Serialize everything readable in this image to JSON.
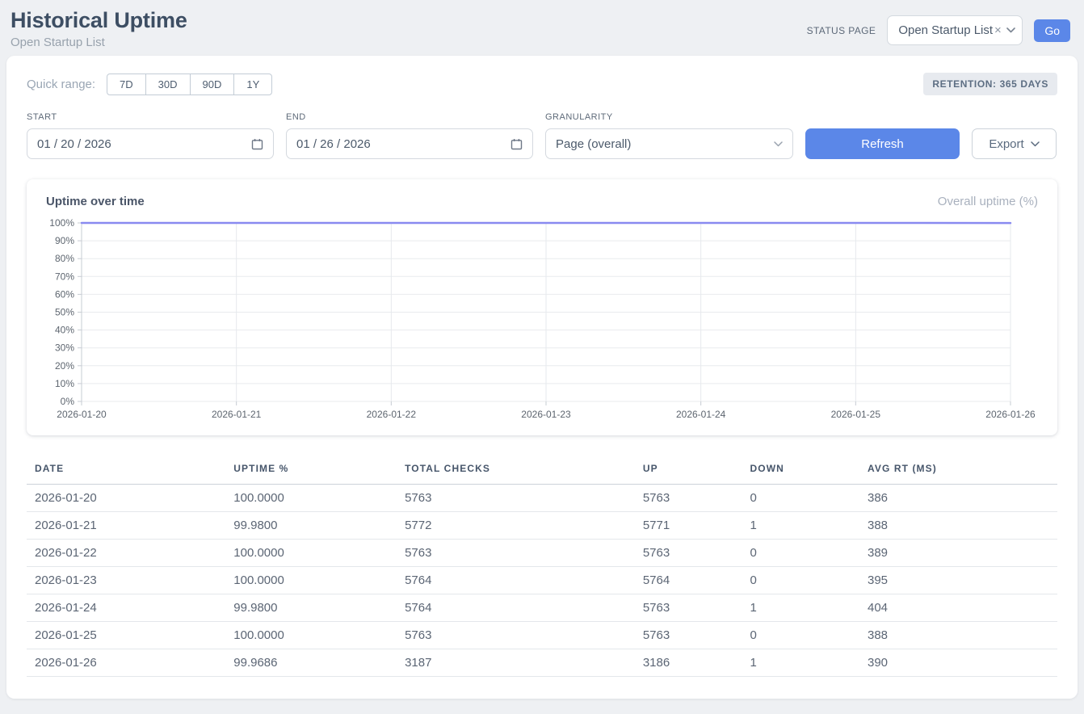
{
  "header": {
    "title": "Historical Uptime",
    "subtitle": "Open Startup List",
    "status_page_label": "STATUS PAGE",
    "status_page_value": "Open Startup List",
    "status_page_clear": "×",
    "go_label": "Go"
  },
  "filters": {
    "quick_range_label": "Quick range:",
    "quick_ranges": [
      "7D",
      "30D",
      "90D",
      "1Y"
    ],
    "retention_badge": "RETENTION: 365 DAYS",
    "start_label": "START",
    "start_value": "01 / 20 / 2026",
    "end_label": "END",
    "end_value": "01 / 26 / 2026",
    "granularity_label": "GRANULARITY",
    "granularity_value": "Page (overall)",
    "refresh_label": "Refresh",
    "export_label": "Export"
  },
  "chart": {
    "title": "Uptime over time",
    "legend": "Overall uptime (%)"
  },
  "chart_data": {
    "type": "line",
    "x": [
      "2026-01-20",
      "2026-01-21",
      "2026-01-22",
      "2026-01-23",
      "2026-01-24",
      "2026-01-25",
      "2026-01-26"
    ],
    "series": [
      {
        "name": "Overall uptime (%)",
        "values": [
          100.0,
          99.98,
          100.0,
          100.0,
          99.98,
          100.0,
          99.9686
        ]
      }
    ],
    "ylim": [
      0,
      100
    ],
    "yticks": [
      0,
      10,
      20,
      30,
      40,
      50,
      60,
      70,
      80,
      90,
      100
    ],
    "ytick_suffix": "%",
    "grid": true,
    "legend_position": "top-right",
    "line_color": "#898af0"
  },
  "table": {
    "columns": [
      "DATE",
      "UPTIME %",
      "TOTAL CHECKS",
      "UP",
      "DOWN",
      "AVG RT (MS)"
    ],
    "rows": [
      [
        "2026-01-20",
        "100.0000",
        "5763",
        "5763",
        "0",
        "386"
      ],
      [
        "2026-01-21",
        "99.9800",
        "5772",
        "5771",
        "1",
        "388"
      ],
      [
        "2026-01-22",
        "100.0000",
        "5763",
        "5763",
        "0",
        "389"
      ],
      [
        "2026-01-23",
        "100.0000",
        "5764",
        "5764",
        "0",
        "395"
      ],
      [
        "2026-01-24",
        "99.9800",
        "5764",
        "5763",
        "1",
        "404"
      ],
      [
        "2026-01-25",
        "100.0000",
        "5763",
        "5763",
        "0",
        "388"
      ],
      [
        "2026-01-26",
        "99.9686",
        "3187",
        "3186",
        "1",
        "390"
      ]
    ]
  },
  "colors": {
    "accent_blue": "#5b87e8",
    "chart_line": "#898af0",
    "page_bg": "#eef0f3"
  }
}
